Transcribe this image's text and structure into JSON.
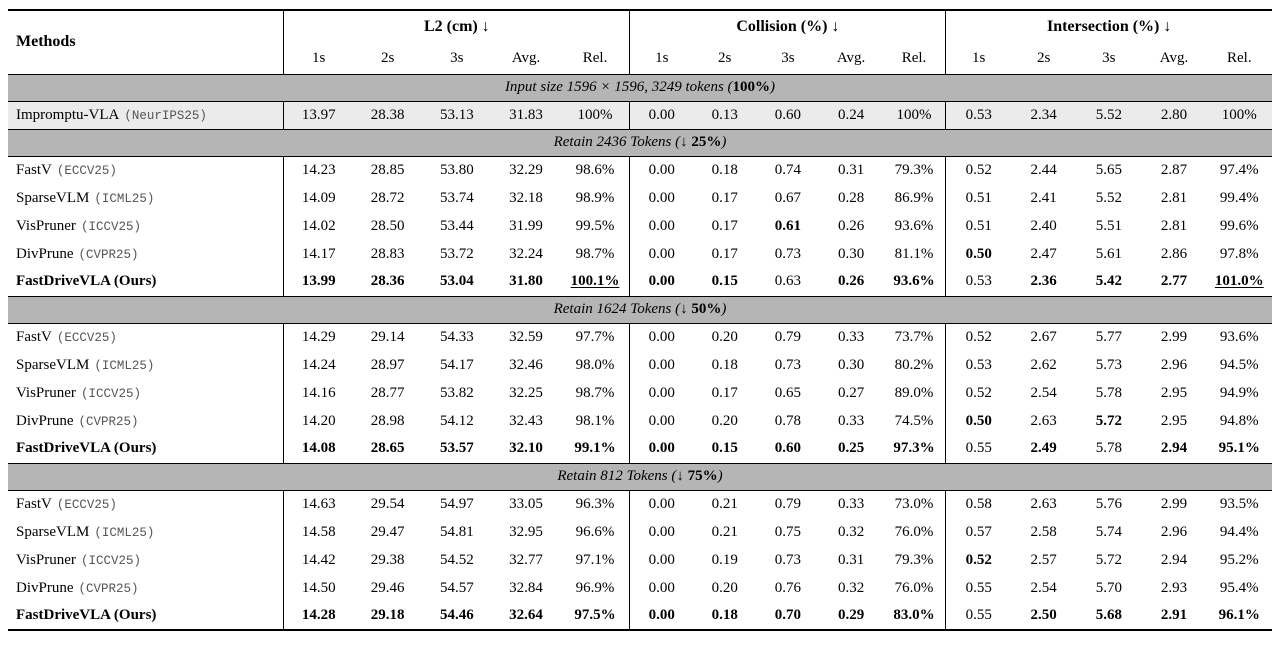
{
  "colors": {
    "section_header_bg": "#b5b5b5",
    "highlight_row_bg": "#ebebeb",
    "rule_color": "#000000",
    "mono_tag_color": "#555555"
  },
  "table": {
    "methods_header": "Methods",
    "groups": [
      {
        "label": "L2 (cm) ↓",
        "subcols": [
          "1s",
          "2s",
          "3s",
          "Avg.",
          "Rel."
        ]
      },
      {
        "label": "Collision (%) ↓",
        "subcols": [
          "1s",
          "2s",
          "3s",
          "Avg.",
          "Rel."
        ]
      },
      {
        "label": "Intersection (%) ↓",
        "subcols": [
          "1s",
          "2s",
          "3s",
          "Avg.",
          "Rel."
        ]
      }
    ],
    "sections": [
      {
        "title_segments": [
          {
            "text": "Input size 1596 × 1596, 3249 tokens (",
            "bold": false
          },
          {
            "text": "100%",
            "bold": true
          },
          {
            "text": ")",
            "bold": false
          }
        ],
        "rows": [
          {
            "method": "Impromptu-VLA",
            "tag": "(NeurIPS25)",
            "bold_method": false,
            "highlight": true,
            "values": [
              "13.97",
              "28.38",
              "53.13",
              "31.83",
              "100%",
              "0.00",
              "0.13",
              "0.60",
              "0.24",
              "100%",
              "0.53",
              "2.34",
              "5.52",
              "2.80",
              "100%"
            ],
            "bold": [],
            "underline": []
          }
        ]
      },
      {
        "title_segments": [
          {
            "text": "Retain 2436 Tokens (↓ ",
            "bold": false
          },
          {
            "text": "25%",
            "bold": true
          },
          {
            "text": ")",
            "bold": false
          }
        ],
        "rows": [
          {
            "method": "FastV",
            "tag": "(ECCV25)",
            "bold_method": false,
            "highlight": false,
            "values": [
              "14.23",
              "28.85",
              "53.80",
              "32.29",
              "98.6%",
              "0.00",
              "0.18",
              "0.74",
              "0.31",
              "79.3%",
              "0.52",
              "2.44",
              "5.65",
              "2.87",
              "97.4%"
            ],
            "bold": [],
            "underline": []
          },
          {
            "method": "SparseVLM",
            "tag": "(ICML25)",
            "bold_method": false,
            "highlight": false,
            "values": [
              "14.09",
              "28.72",
              "53.74",
              "32.18",
              "98.9%",
              "0.00",
              "0.17",
              "0.67",
              "0.28",
              "86.9%",
              "0.51",
              "2.41",
              "5.52",
              "2.81",
              "99.4%"
            ],
            "bold": [],
            "underline": []
          },
          {
            "method": "VisPruner",
            "tag": "(ICCV25)",
            "bold_method": false,
            "highlight": false,
            "values": [
              "14.02",
              "28.50",
              "53.44",
              "31.99",
              "99.5%",
              "0.00",
              "0.17",
              "0.61",
              "0.26",
              "93.6%",
              "0.51",
              "2.40",
              "5.51",
              "2.81",
              "99.6%"
            ],
            "bold": [
              7
            ],
            "underline": []
          },
          {
            "method": "DivPrune",
            "tag": "(CVPR25)",
            "bold_method": false,
            "highlight": false,
            "values": [
              "14.17",
              "28.83",
              "53.72",
              "32.24",
              "98.7%",
              "0.00",
              "0.17",
              "0.73",
              "0.30",
              "81.1%",
              "0.50",
              "2.47",
              "5.61",
              "2.86",
              "97.8%"
            ],
            "bold": [
              10
            ],
            "underline": []
          },
          {
            "method": "FastDriveVLA (Ours)",
            "tag": "",
            "bold_method": true,
            "highlight": false,
            "values": [
              "13.99",
              "28.36",
              "53.04",
              "31.80",
              "100.1%",
              "0.00",
              "0.15",
              "0.63",
              "0.26",
              "93.6%",
              "0.53",
              "2.36",
              "5.42",
              "2.77",
              "101.0%"
            ],
            "bold": [
              0,
              1,
              2,
              3,
              4,
              5,
              6,
              8,
              9,
              11,
              12,
              13,
              14
            ],
            "underline": [
              4,
              14
            ]
          }
        ]
      },
      {
        "title_segments": [
          {
            "text": "Retain 1624 Tokens (↓ ",
            "bold": false
          },
          {
            "text": "50%",
            "bold": true
          },
          {
            "text": ")",
            "bold": false
          }
        ],
        "rows": [
          {
            "method": "FastV",
            "tag": "(ECCV25)",
            "bold_method": false,
            "highlight": false,
            "values": [
              "14.29",
              "29.14",
              "54.33",
              "32.59",
              "97.7%",
              "0.00",
              "0.20",
              "0.79",
              "0.33",
              "73.7%",
              "0.52",
              "2.67",
              "5.77",
              "2.99",
              "93.6%"
            ],
            "bold": [],
            "underline": []
          },
          {
            "method": "SparseVLM",
            "tag": "(ICML25)",
            "bold_method": false,
            "highlight": false,
            "values": [
              "14.24",
              "28.97",
              "54.17",
              "32.46",
              "98.0%",
              "0.00",
              "0.18",
              "0.73",
              "0.30",
              "80.2%",
              "0.53",
              "2.62",
              "5.73",
              "2.96",
              "94.5%"
            ],
            "bold": [],
            "underline": []
          },
          {
            "method": "VisPruner",
            "tag": "(ICCV25)",
            "bold_method": false,
            "highlight": false,
            "values": [
              "14.16",
              "28.77",
              "53.82",
              "32.25",
              "98.7%",
              "0.00",
              "0.17",
              "0.65",
              "0.27",
              "89.0%",
              "0.52",
              "2.54",
              "5.78",
              "2.95",
              "94.9%"
            ],
            "bold": [],
            "underline": []
          },
          {
            "method": "DivPrune",
            "tag": "(CVPR25)",
            "bold_method": false,
            "highlight": false,
            "values": [
              "14.20",
              "28.98",
              "54.12",
              "32.43",
              "98.1%",
              "0.00",
              "0.20",
              "0.78",
              "0.33",
              "74.5%",
              "0.50",
              "2.63",
              "5.72",
              "2.95",
              "94.8%"
            ],
            "bold": [
              10,
              12
            ],
            "underline": []
          },
          {
            "method": "FastDriveVLA (Ours)",
            "tag": "",
            "bold_method": true,
            "highlight": false,
            "values": [
              "14.08",
              "28.65",
              "53.57",
              "32.10",
              "99.1%",
              "0.00",
              "0.15",
              "0.60",
              "0.25",
              "97.3%",
              "0.55",
              "2.49",
              "5.78",
              "2.94",
              "95.1%"
            ],
            "bold": [
              0,
              1,
              2,
              3,
              4,
              5,
              6,
              7,
              8,
              9,
              11,
              13,
              14
            ],
            "underline": []
          }
        ]
      },
      {
        "title_segments": [
          {
            "text": "Retain 812 Tokens (↓ ",
            "bold": false
          },
          {
            "text": "75%",
            "bold": true
          },
          {
            "text": ")",
            "bold": false
          }
        ],
        "rows": [
          {
            "method": "FastV",
            "tag": "(ECCV25)",
            "bold_method": false,
            "highlight": false,
            "values": [
              "14.63",
              "29.54",
              "54.97",
              "33.05",
              "96.3%",
              "0.00",
              "0.21",
              "0.79",
              "0.33",
              "73.0%",
              "0.58",
              "2.63",
              "5.76",
              "2.99",
              "93.5%"
            ],
            "bold": [],
            "underline": []
          },
          {
            "method": "SparseVLM",
            "tag": "(ICML25)",
            "bold_method": false,
            "highlight": false,
            "values": [
              "14.58",
              "29.47",
              "54.81",
              "32.95",
              "96.6%",
              "0.00",
              "0.21",
              "0.75",
              "0.32",
              "76.0%",
              "0.57",
              "2.58",
              "5.74",
              "2.96",
              "94.4%"
            ],
            "bold": [],
            "underline": []
          },
          {
            "method": "VisPruner",
            "tag": "(ICCV25)",
            "bold_method": false,
            "highlight": false,
            "values": [
              "14.42",
              "29.38",
              "54.52",
              "32.77",
              "97.1%",
              "0.00",
              "0.19",
              "0.73",
              "0.31",
              "79.3%",
              "0.52",
              "2.57",
              "5.72",
              "2.94",
              "95.2%"
            ],
            "bold": [
              10
            ],
            "underline": []
          },
          {
            "method": "DivPrune",
            "tag": "(CVPR25)",
            "bold_method": false,
            "highlight": false,
            "values": [
              "14.50",
              "29.46",
              "54.57",
              "32.84",
              "96.9%",
              "0.00",
              "0.20",
              "0.76",
              "0.32",
              "76.0%",
              "0.55",
              "2.54",
              "5.70",
              "2.93",
              "95.4%"
            ],
            "bold": [],
            "underline": []
          },
          {
            "method": "FastDriveVLA (Ours)",
            "tag": "",
            "bold_method": true,
            "highlight": false,
            "values": [
              "14.28",
              "29.18",
              "54.46",
              "32.64",
              "97.5%",
              "0.00",
              "0.18",
              "0.70",
              "0.29",
              "83.0%",
              "0.55",
              "2.50",
              "5.68",
              "2.91",
              "96.1%"
            ],
            "bold": [
              0,
              1,
              2,
              3,
              4,
              5,
              6,
              7,
              8,
              9,
              11,
              12,
              13,
              14
            ],
            "underline": []
          }
        ]
      }
    ]
  }
}
